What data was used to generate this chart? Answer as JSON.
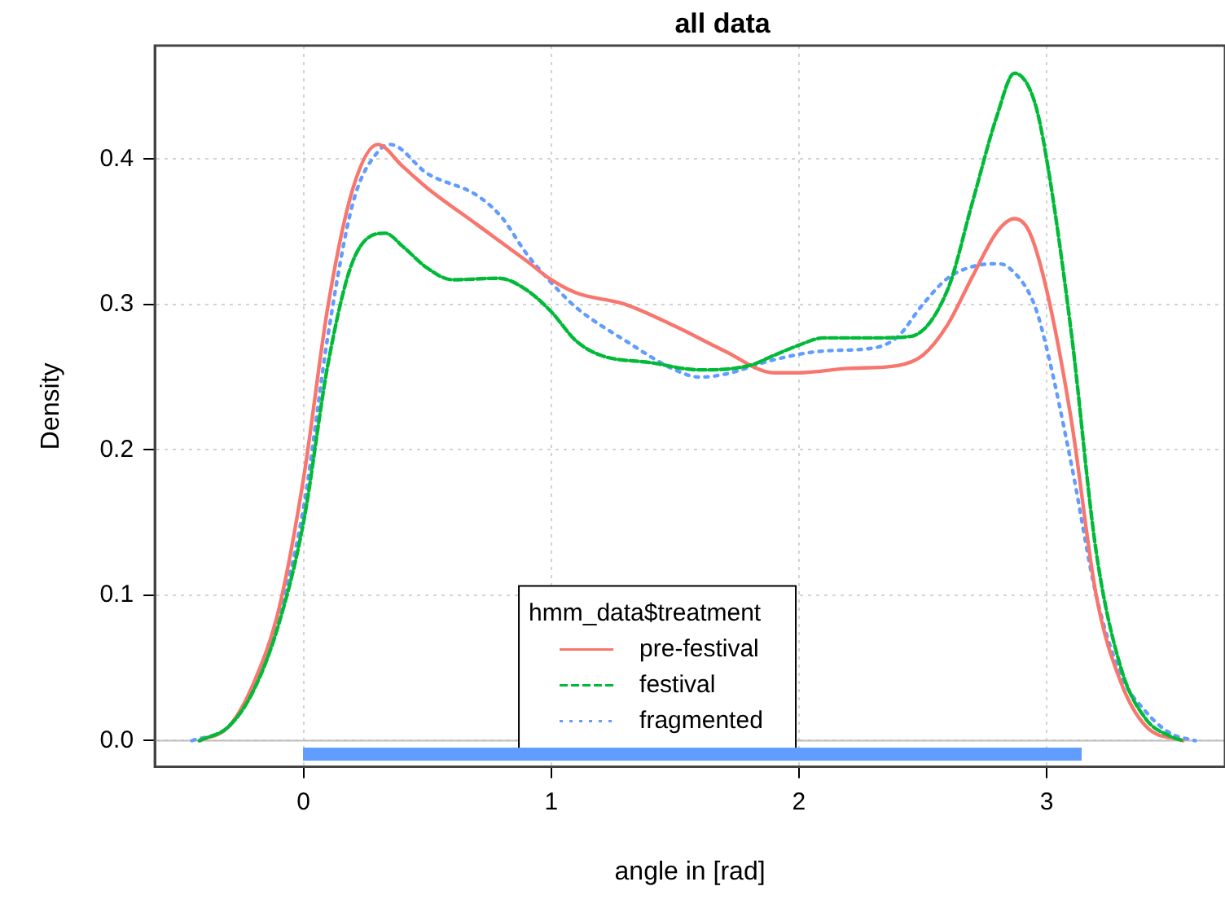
{
  "chart_data": {
    "type": "line",
    "title": "all data",
    "xlabel": "angle in [rad]",
    "ylabel": "Density",
    "legend_title": "hmm_data$treatment",
    "legend": "bottom",
    "grid": true,
    "marker": "none",
    "xlim": [
      -0.6,
      3.72
    ],
    "xticks": [
      0,
      1,
      2,
      3
    ],
    "ylim": [
      -0.018,
      0.478
    ],
    "yticks": [
      {
        "value": 0,
        "label": "0.0"
      },
      0.1,
      0.2,
      0.3,
      0.4
    ],
    "ref_lines": [
      {
        "axis": "y",
        "value": 0,
        "color": "#bebebe"
      }
    ],
    "series": [
      {
        "name": "pre-festival",
        "color": "#f8766d",
        "line_style": "solid",
        "x": [
          -0.42,
          -0.3,
          -0.2,
          -0.1,
          0,
          0.1,
          0.2,
          0.3,
          0.4,
          0.5,
          0.7,
          0.9,
          1.0,
          1.1,
          1.3,
          1.5,
          1.7,
          1.9,
          2.0,
          2.2,
          2.4,
          2.5,
          2.6,
          2.7,
          2.8,
          2.87,
          2.93,
          3.0,
          3.1,
          3.2,
          3.3,
          3.4,
          3.55
        ],
        "values": [
          0,
          0.01,
          0.04,
          0.09,
          0.18,
          0.3,
          0.38,
          0.41,
          0.395,
          0.38,
          0.355,
          0.33,
          0.317,
          0.308,
          0.3,
          0.285,
          0.268,
          0.253,
          0.253,
          0.256,
          0.258,
          0.265,
          0.286,
          0.319,
          0.35,
          0.359,
          0.35,
          0.31,
          0.22,
          0.1,
          0.04,
          0.01,
          0
        ]
      },
      {
        "name": "festival",
        "color": "#00ba38",
        "line_style": "dashed",
        "x": [
          -0.42,
          -0.3,
          -0.2,
          -0.1,
          0,
          0.1,
          0.2,
          0.33,
          0.4,
          0.5,
          0.6,
          0.79,
          0.9,
          1.0,
          1.1,
          1.2,
          1.4,
          1.6,
          1.8,
          1.9,
          2.0,
          2.1,
          2.3,
          2.45,
          2.6,
          2.7,
          2.8,
          2.87,
          2.95,
          3.0,
          3.1,
          3.2,
          3.3,
          3.4,
          3.5,
          3.55
        ],
        "values": [
          0,
          0.01,
          0.035,
          0.08,
          0.15,
          0.26,
          0.33,
          0.349,
          0.34,
          0.325,
          0.317,
          0.318,
          0.31,
          0.295,
          0.275,
          0.265,
          0.26,
          0.255,
          0.258,
          0.265,
          0.272,
          0.277,
          0.277,
          0.278,
          0.31,
          0.37,
          0.43,
          0.459,
          0.44,
          0.4,
          0.28,
          0.13,
          0.05,
          0.015,
          0.003,
          0
        ]
      },
      {
        "name": "fragmented",
        "color": "#619cff",
        "line_style": "dotted",
        "x": [
          -0.45,
          -0.3,
          -0.2,
          -0.1,
          0,
          0.1,
          0.2,
          0.3,
          0.35,
          0.5,
          0.7,
          0.8,
          0.9,
          1.0,
          1.1,
          1.3,
          1.5,
          1.6,
          1.7,
          1.9,
          2.1,
          2.3,
          2.4,
          2.5,
          2.6,
          2.7,
          2.8,
          2.85,
          2.95,
          3.0,
          3.1,
          3.2,
          3.3,
          3.4,
          3.5,
          3.6
        ],
        "values": [
          0,
          0.01,
          0.038,
          0.085,
          0.16,
          0.28,
          0.37,
          0.405,
          0.41,
          0.39,
          0.375,
          0.36,
          0.335,
          0.315,
          0.298,
          0.275,
          0.255,
          0.25,
          0.252,
          0.262,
          0.268,
          0.27,
          0.278,
          0.3,
          0.318,
          0.326,
          0.328,
          0.325,
          0.3,
          0.27,
          0.19,
          0.1,
          0.045,
          0.02,
          0.005,
          0
        ]
      }
    ]
  }
}
